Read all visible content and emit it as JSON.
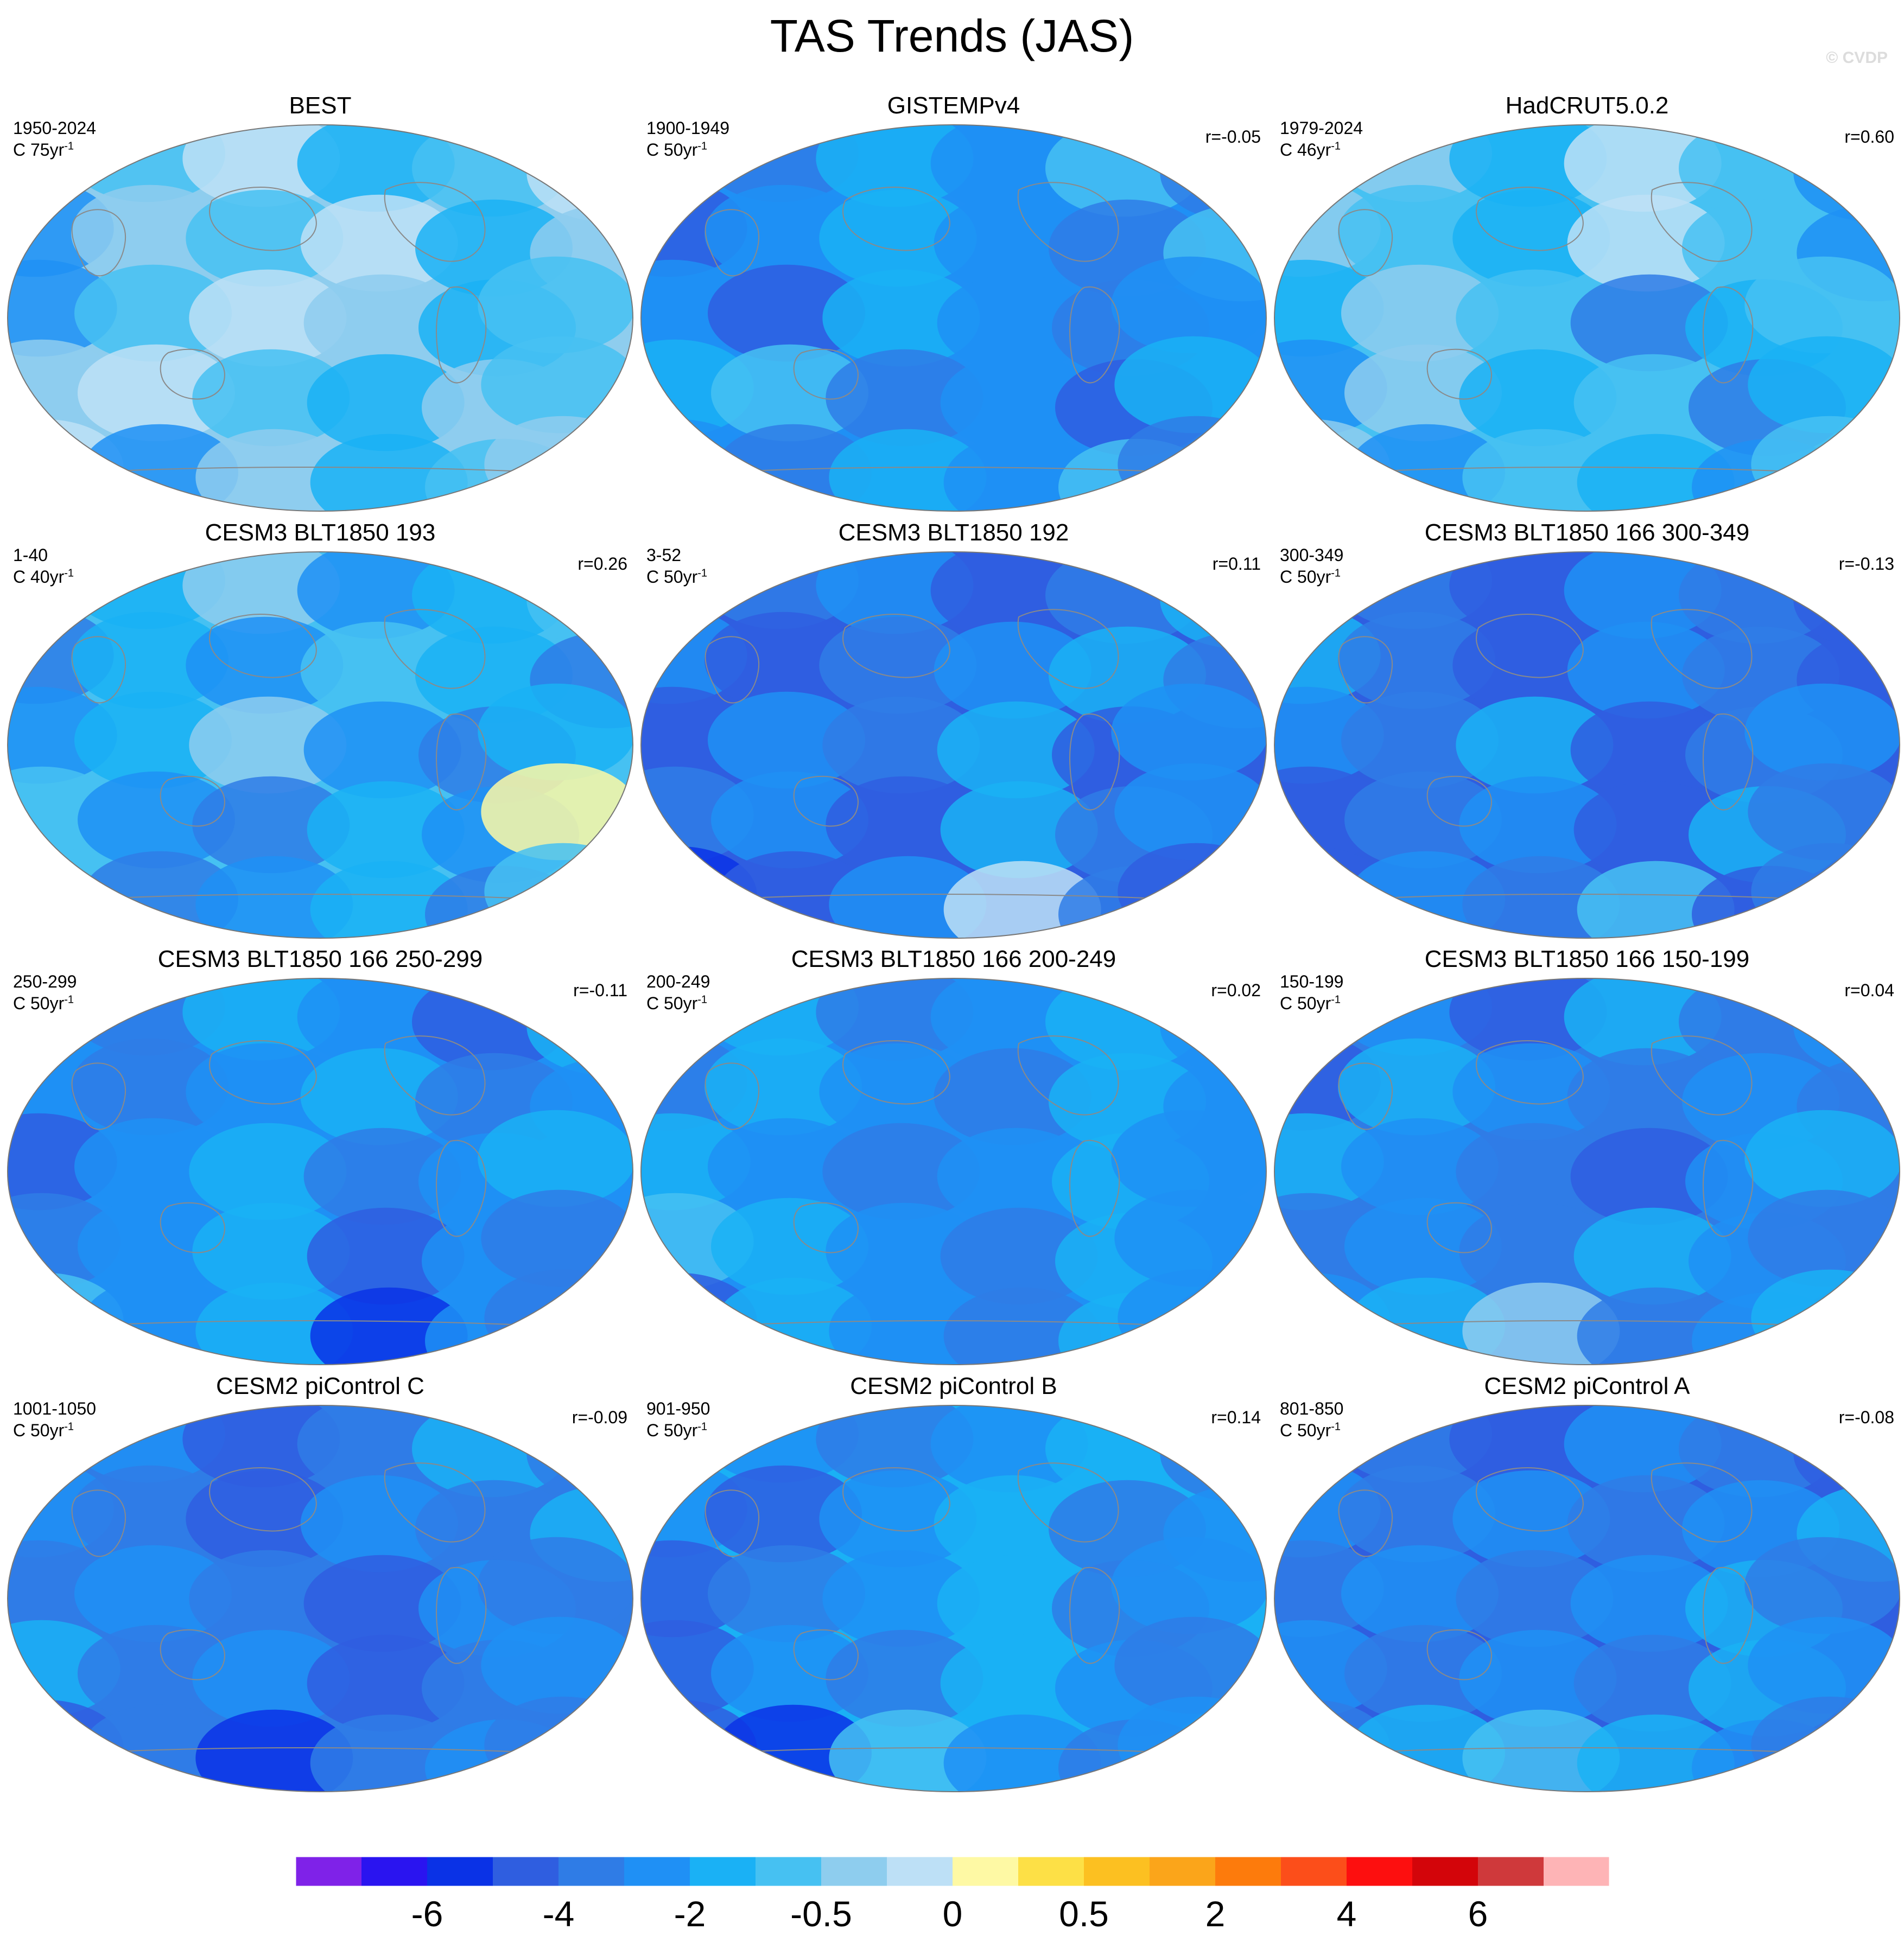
{
  "title": "TAS Trends (JAS)",
  "watermark": "© CVDP",
  "panels": [
    {
      "name": "BEST",
      "period": "1950-2024",
      "units": "C 75yr",
      "units_sup": "-1",
      "r": "",
      "palette": [
        8,
        7,
        9,
        6,
        7,
        9,
        5,
        8,
        7,
        9,
        6,
        8,
        5,
        7,
        9,
        8,
        6,
        7,
        8,
        9,
        7,
        6,
        8,
        7,
        9,
        5,
        8,
        6,
        7,
        8
      ]
    },
    {
      "name": "GISTEMPv4",
      "period": "1900-1949",
      "units": "C 50yr",
      "units_sup": "-1",
      "r": "r=-0.05",
      "palette": [
        5,
        4,
        6,
        5,
        7,
        4,
        3,
        5,
        6,
        5,
        4,
        7,
        5,
        3,
        6,
        5,
        4,
        5,
        6,
        7,
        4,
        5,
        3,
        6,
        5,
        4,
        6,
        5,
        7,
        4
      ]
    },
    {
      "name": "HadCRUT5.0.2",
      "period": "1979-2024",
      "units": "C 46yr",
      "units_sup": "-1",
      "r": "r=0.60",
      "palette": [
        7,
        8,
        6,
        9,
        7,
        5,
        8,
        7,
        6,
        9,
        7,
        5,
        6,
        8,
        7,
        4,
        6,
        7,
        5,
        8,
        6,
        7,
        4,
        6,
        8,
        5,
        7,
        6,
        5,
        7
      ]
    },
    {
      "name": "CESM3 BLT1850 193",
      "period": "1-40",
      "units": "C 40yr",
      "units_sup": "-1",
      "r": "r=0.26",
      "palette": [
        7,
        6,
        8,
        5,
        6,
        7,
        4,
        6,
        5,
        7,
        6,
        4,
        5,
        6,
        8,
        5,
        4,
        6,
        7,
        5,
        4,
        6,
        5,
        10,
        7,
        4,
        5,
        6,
        4,
        7
      ]
    },
    {
      "name": "CESM3 BLT1850 192",
      "period": "3-52",
      "units": "C 50yr",
      "units_sup": "-1",
      "r": "r=0.11",
      "palette": [
        3,
        4,
        5,
        3,
        4,
        6,
        5,
        3,
        4,
        5,
        6,
        4,
        3,
        5,
        4,
        6,
        3,
        5,
        4,
        5,
        3,
        6,
        4,
        5,
        2,
        3,
        5,
        9,
        4,
        3
      ]
    },
    {
      "name": "CESM3 BLT1850 166 300-349",
      "period": "300-349",
      "units": "C 50yr",
      "units_sup": "-1",
      "r": "r=-0.13",
      "palette": [
        3,
        4,
        3,
        5,
        4,
        3,
        6,
        4,
        3,
        5,
        4,
        3,
        5,
        4,
        6,
        3,
        4,
        5,
        3,
        4,
        5,
        3,
        6,
        4,
        3,
        5,
        4,
        7,
        3,
        4
      ]
    },
    {
      "name": "CESM3 BLT1850 166 250-299",
      "period": "250-299",
      "units": "C 50yr",
      "units_sup": "-1",
      "r": "r=-0.11",
      "palette": [
        5,
        4,
        6,
        5,
        3,
        6,
        5,
        4,
        5,
        6,
        4,
        5,
        3,
        5,
        6,
        4,
        5,
        6,
        4,
        5,
        6,
        3,
        5,
        4,
        7,
        5,
        6,
        2,
        5,
        4
      ]
    },
    {
      "name": "CESM3 BLT1850 166 200-249",
      "period": "200-249",
      "units": "C 50yr",
      "units_sup": "-1",
      "r": "r=0.02",
      "palette": [
        5,
        6,
        4,
        5,
        6,
        5,
        4,
        6,
        5,
        4,
        6,
        5,
        6,
        5,
        4,
        5,
        6,
        5,
        7,
        6,
        5,
        4,
        6,
        5,
        3,
        6,
        5,
        4,
        6,
        5
      ]
    },
    {
      "name": "CESM3 BLT1850 166 150-199",
      "period": "150-199",
      "units": "C 50yr",
      "units_sup": "-1",
      "r": "r=0.04",
      "palette": [
        4,
        5,
        3,
        6,
        4,
        5,
        3,
        6,
        5,
        4,
        5,
        4,
        6,
        5,
        4,
        3,
        5,
        6,
        4,
        5,
        4,
        6,
        5,
        4,
        5,
        6,
        8,
        4,
        5,
        6
      ]
    },
    {
      "name": "CESM2 piControl C",
      "period": "1001-1050",
      "units": "C 50yr",
      "units_sup": "-1",
      "r": "r=-0.09",
      "palette": [
        4,
        5,
        3,
        4,
        6,
        4,
        5,
        4,
        3,
        5,
        4,
        6,
        4,
        5,
        4,
        3,
        5,
        4,
        6,
        4,
        5,
        3,
        4,
        5,
        3,
        4,
        2,
        4,
        5,
        4
      ]
    },
    {
      "name": "CESM2 piControl B",
      "period": "901-950",
      "units": "C 50yr",
      "units_sup": "-1",
      "r": "r=0.14",
      "palette": [
        6,
        5,
        4,
        5,
        6,
        4,
        5,
        3,
        5,
        6,
        4,
        5,
        3,
        4,
        5,
        6,
        4,
        5,
        3,
        5,
        4,
        6,
        5,
        4,
        3,
        2,
        7,
        5,
        4,
        5
      ]
    },
    {
      "name": "CESM2 piControl A",
      "period": "801-850",
      "units": "C 50yr",
      "units_sup": "-1",
      "r": "r=-0.08",
      "palette": [
        3,
        4,
        3,
        5,
        4,
        3,
        5,
        4,
        5,
        4,
        5,
        6,
        4,
        5,
        4,
        5,
        6,
        4,
        5,
        4,
        5,
        4,
        6,
        5,
        4,
        6,
        7,
        6,
        5,
        4
      ]
    }
  ],
  "colorbar": {
    "colors": [
      "#7f22e8",
      "#2a14f0",
      "#0a32e6",
      "#2f5ee0",
      "#2f7ce6",
      "#1f90f5",
      "#1ab1f5",
      "#46c1f2",
      "#8ecdee",
      "#bde0f6",
      "#fef9a4",
      "#fde046",
      "#fcc021",
      "#fba51a",
      "#fd7b0c",
      "#fc4e1a",
      "#fd0f0f",
      "#d3050a",
      "#cf393b",
      "#feb4b6"
    ],
    "labels": [
      "-6",
      "-4",
      "-2",
      "-0.5",
      "0",
      "0.5",
      "2",
      "4",
      "6"
    ]
  }
}
